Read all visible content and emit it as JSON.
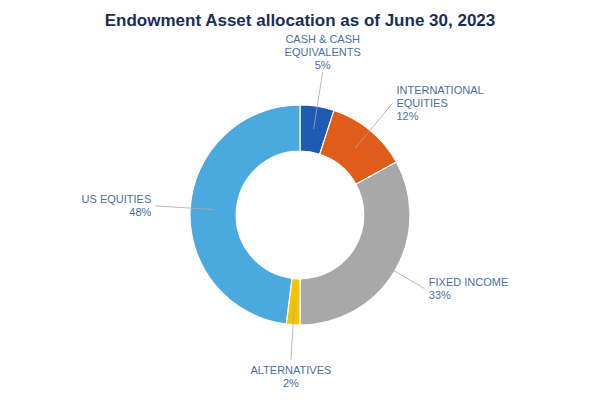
{
  "chart_data": {
    "type": "donut",
    "title": "Endowment Asset allocation as of June 30, 2023",
    "categories": [
      "CASH & CASH\nEQUIVALENTS",
      "INTERNATIONAL\nEQUITIES",
      "FIXED INCOME",
      "ALTERNATIVES",
      "US EQUITIES"
    ],
    "values": [
      5,
      12,
      33,
      2,
      48
    ],
    "value_labels": [
      "5%",
      "12%",
      "33%",
      "2%",
      "48%"
    ],
    "colors": [
      "#1f5bb5",
      "#e05c1a",
      "#a8a8a8",
      "#f5c400",
      "#4aaae0"
    ],
    "data_labels": true
  }
}
